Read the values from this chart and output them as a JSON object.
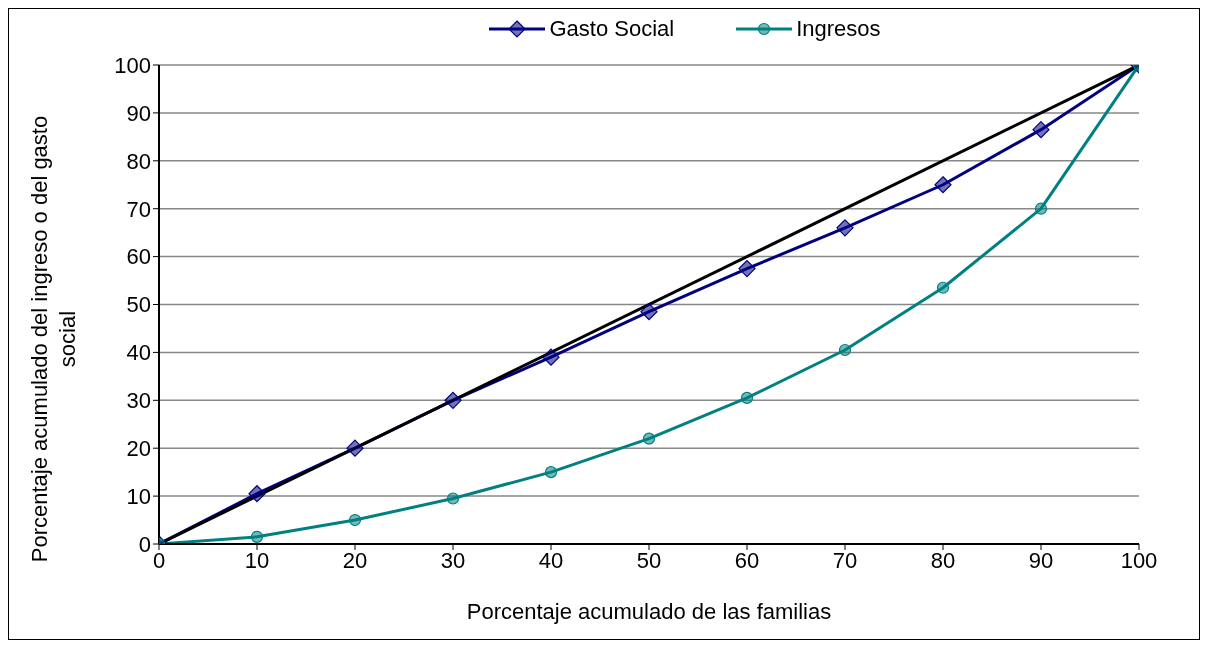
{
  "chart_data": {
    "type": "line",
    "xlabel": "Porcentaje acumulado de las familias",
    "ylabel": "Porcentaje acumulado del ingreso o del gasto social",
    "x": [
      0,
      10,
      20,
      30,
      40,
      50,
      60,
      70,
      80,
      90,
      100
    ],
    "series": [
      {
        "name": "Gasto Social",
        "color": "#000080",
        "marker": "diamond",
        "values": [
          0,
          10.5,
          20,
          30,
          39,
          48.5,
          57.5,
          66,
          75,
          86.5,
          100
        ]
      },
      {
        "name": "Ingresos",
        "color": "#008080",
        "marker": "circle",
        "values": [
          0,
          1.5,
          5,
          9.5,
          15,
          22,
          30.5,
          40.5,
          53.5,
          70,
          100
        ]
      },
      {
        "type": "line",
        "color": "#000000",
        "marker": "none",
        "x": [
          0,
          100
        ],
        "values": [
          0,
          100
        ]
      }
    ],
    "xlim": [
      0,
      100
    ],
    "xticks": [
      0,
      10,
      20,
      30,
      40,
      50,
      60,
      70,
      80,
      90,
      100
    ],
    "ylim": [
      0,
      100
    ],
    "yticks": [
      0,
      10,
      20,
      30,
      40,
      50,
      60,
      70,
      80,
      90,
      100
    ],
    "grid": "y",
    "legend": "top"
  }
}
